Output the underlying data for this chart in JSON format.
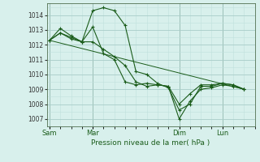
{
  "background_color": "#d8f0ec",
  "grid_major_color": "#a8ccc8",
  "grid_minor_color": "#c0e0dc",
  "line_color": "#1a5c1a",
  "xlabel": "Pression niveau de la mer( hPa )",
  "ylim": [
    1006.5,
    1014.8
  ],
  "yticks": [
    1007,
    1008,
    1009,
    1010,
    1011,
    1012,
    1013,
    1014
  ],
  "xtick_labels": [
    "Sam",
    "Mar",
    "Dim",
    "Lun"
  ],
  "xtick_positions": [
    0,
    16,
    48,
    64
  ],
  "vline_positions": [
    0,
    16,
    48,
    64
  ],
  "xlim": [
    -1,
    76
  ],
  "series": [
    {
      "x": [
        0,
        4,
        8,
        12,
        16,
        20,
        24,
        28,
        32,
        36,
        40,
        44,
        48,
        52,
        56,
        60,
        64,
        68,
        72
      ],
      "y": [
        1012.3,
        1013.1,
        1012.6,
        1012.2,
        1014.3,
        1014.5,
        1014.3,
        1013.3,
        1010.2,
        1010.0,
        1009.4,
        1009.1,
        1007.6,
        1008.0,
        1009.2,
        1009.2,
        1009.4,
        1009.3,
        1009.0
      ]
    },
    {
      "x": [
        0,
        4,
        8,
        12,
        16,
        20,
        24,
        28,
        32,
        36,
        40,
        44,
        48,
        52,
        56,
        60,
        64,
        68,
        72
      ],
      "y": [
        1012.3,
        1012.8,
        1012.5,
        1012.2,
        1013.2,
        1011.4,
        1011.0,
        1009.5,
        1009.3,
        1009.4,
        1009.3,
        1009.2,
        1008.0,
        1008.7,
        1009.3,
        1009.3,
        1009.4,
        1009.3,
        1009.0
      ]
    },
    {
      "x": [
        0,
        4,
        8,
        12,
        16,
        20,
        24,
        28,
        32,
        36,
        40,
        44,
        48,
        52,
        56,
        60,
        64,
        68,
        72
      ],
      "y": [
        1012.3,
        1012.8,
        1012.4,
        1012.2,
        1012.2,
        1011.7,
        1011.2,
        1010.6,
        1009.5,
        1009.2,
        1009.3,
        1009.2,
        1007.0,
        1008.2,
        1009.0,
        1009.1,
        1009.3,
        1009.2,
        1009.0
      ]
    },
    {
      "x": [
        0,
        72
      ],
      "y": [
        1012.3,
        1009.0
      ]
    }
  ]
}
